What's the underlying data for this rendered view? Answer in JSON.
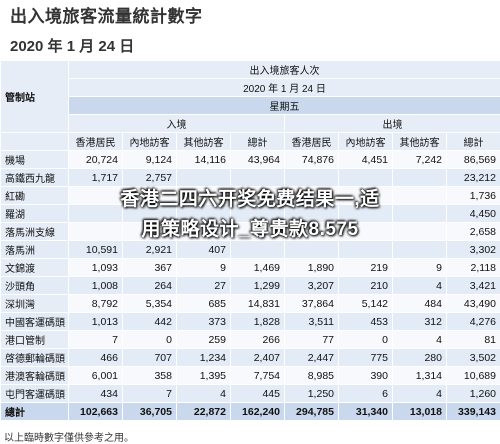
{
  "header": {
    "title": "出入境旅客流量統計數字",
    "date": "2020 年 1 月 24 日"
  },
  "table": {
    "col_checkpoint": "管制站",
    "group_title": "出入境旅客人次",
    "table_date": "2020 年 1 月 24 日",
    "weekday": "星期五",
    "arrival": "入境",
    "departure": "出境",
    "subheaders": [
      "香港居民",
      "內地訪客",
      "其他訪客",
      "總計",
      "香港居民",
      "內地訪客",
      "其他訪客",
      "總計"
    ],
    "rows": [
      {
        "name": "機場",
        "values": [
          "20,724",
          "9,124",
          "14,116",
          "43,964",
          "74,876",
          "4,451",
          "7,242",
          "86,569"
        ]
      },
      {
        "name": "高鐵西九龍",
        "values": [
          "1,717",
          "2,757",
          "",
          "",
          "",
          "",
          "",
          "23,212"
        ]
      },
      {
        "name": "紅磡",
        "values": [
          "",
          "",
          "",
          "",
          "",
          "",
          "",
          "1,736"
        ]
      },
      {
        "name": "羅湖",
        "values": [
          "",
          "",
          "",
          "",
          "",
          "",
          "",
          "4,450"
        ]
      },
      {
        "name": "落馬洲支線",
        "values": [
          "",
          "",
          "",
          "",
          "",
          "",
          "",
          "2,658"
        ]
      },
      {
        "name": "落馬洲",
        "values": [
          "10,591",
          "2,921",
          "407",
          "",
          "",
          "",
          "",
          "3,302"
        ]
      },
      {
        "name": "文錦渡",
        "values": [
          "1,093",
          "367",
          "9",
          "1,469",
          "1,890",
          "219",
          "9",
          "2,118"
        ]
      },
      {
        "name": "沙頭角",
        "values": [
          "1,008",
          "264",
          "27",
          "1,299",
          "3,207",
          "210",
          "4",
          "3,421"
        ]
      },
      {
        "name": "深圳灣",
        "values": [
          "8,792",
          "5,354",
          "685",
          "14,831",
          "37,864",
          "5,142",
          "484",
          "43,490"
        ]
      },
      {
        "name": "中國客運碼頭",
        "values": [
          "1,013",
          "442",
          "373",
          "1,828",
          "3,511",
          "453",
          "312",
          "4,276"
        ]
      },
      {
        "name": "港口管制",
        "values": [
          "7",
          "0",
          "259",
          "266",
          "77",
          "0",
          "4",
          "81"
        ]
      },
      {
        "name": "啓德郵輪碼頭",
        "values": [
          "466",
          "707",
          "1,234",
          "2,407",
          "2,447",
          "775",
          "280",
          "3,502"
        ]
      },
      {
        "name": "港澳客輪碼頭",
        "values": [
          "6,001",
          "358",
          "1,395",
          "7,754",
          "8,985",
          "390",
          "1,314",
          "10,689"
        ]
      },
      {
        "name": "屯門客運碼頭",
        "values": [
          "434",
          "7",
          "4",
          "445",
          "1,250",
          "6",
          "4",
          "1,260"
        ]
      }
    ],
    "total": {
      "name": "總計",
      "values": [
        "102,663",
        "36,705",
        "22,872",
        "162,240",
        "294,785",
        "31,340",
        "13,018",
        "339,143"
      ]
    }
  },
  "footnote": "以上臨時數字僅供參考之用。",
  "overlay_text": {
    "line1": "香港二四六开奖免费结果一,适",
    "line2": "用策略设计_尊贵款8.575"
  }
}
